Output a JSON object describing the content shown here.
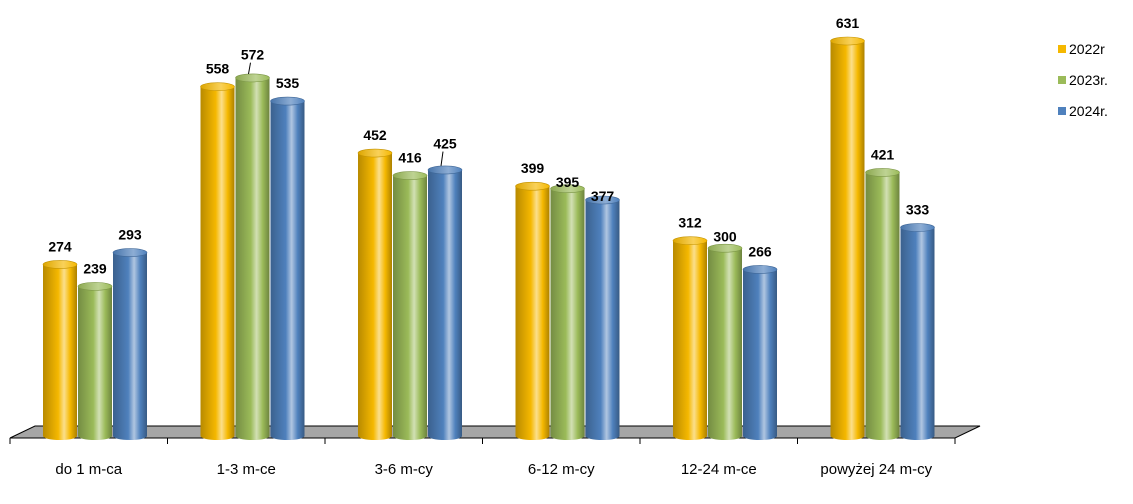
{
  "chart_data": {
    "type": "bar",
    "categories": [
      "do 1 m-ca",
      "1-3 m-ce",
      "3-6 m-cy",
      "6-12 m-cy",
      "12-24 m-ce",
      "powyżej 24 m-cy"
    ],
    "series": [
      {
        "name": "2022r",
        "values": [
          274,
          558,
          452,
          399,
          312,
          631
        ],
        "color": "#F5B800"
      },
      {
        "name": "2023r.",
        "values": [
          239,
          572,
          416,
          395,
          300,
          421
        ],
        "color": "#9BBB59"
      },
      {
        "name": "2024r.",
        "values": [
          293,
          535,
          425,
          377,
          266,
          333
        ],
        "color": "#4F81BD"
      }
    ],
    "ylim": [
      0,
      700
    ],
    "grid": false,
    "style": "3d-cylinder",
    "legend_position": "right"
  }
}
